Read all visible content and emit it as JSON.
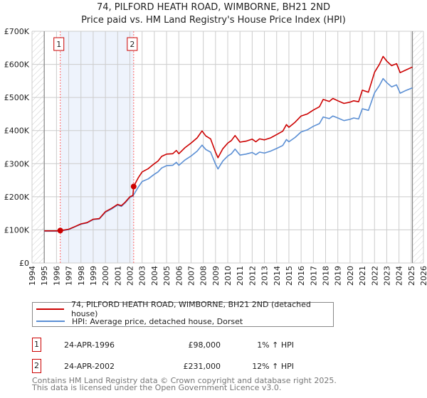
{
  "chart_data": {
    "type": "line",
    "title": "74, PILFORD HEATH ROAD, WIMBORNE, BH21 2ND",
    "subtitle": "Price paid vs. HM Land Registry's House Price Index (HPI)",
    "xlim": [
      1994,
      2026
    ],
    "ylim": [
      0,
      700000
    ],
    "x_ticks": [
      "1994",
      "1995",
      "1996",
      "1997",
      "1998",
      "1999",
      "2000",
      "2001",
      "2002",
      "2003",
      "2004",
      "2005",
      "2006",
      "2007",
      "2008",
      "2009",
      "2010",
      "2011",
      "2012",
      "2013",
      "2014",
      "2015",
      "2016",
      "2017",
      "2018",
      "2019",
      "2020",
      "2021",
      "2022",
      "2023",
      "2024",
      "2025",
      "2026"
    ],
    "y_ticks": [
      {
        "v": 0,
        "label": "£0"
      },
      {
        "v": 100000,
        "label": "£100K"
      },
      {
        "v": 200000,
        "label": "£200K"
      },
      {
        "v": 300000,
        "label": "£300K"
      },
      {
        "v": 400000,
        "label": "£400K"
      },
      {
        "v": 500000,
        "label": "£500K"
      },
      {
        "v": 600000,
        "label": "£600K"
      },
      {
        "v": 700000,
        "label": "£700K"
      }
    ],
    "grid": true,
    "data_range": [
      1995,
      2025.1
    ],
    "shaded_range": [
      1996.31,
      2002.31
    ],
    "colors": {
      "price": "#cc0000",
      "hpi": "#5b8fd4",
      "marker_line": "#ff6666",
      "shade": "#eef3fc"
    },
    "series": [
      {
        "name": "74, PILFORD HEATH ROAD, WIMBORNE, BH21 2ND (detached house)",
        "unit": "£K",
        "points": [
          [
            1995.0,
            97
          ],
          [
            1995.5,
            97
          ],
          [
            1996.0,
            97
          ],
          [
            1996.31,
            98
          ],
          [
            1996.7,
            100
          ],
          [
            1997.0,
            102
          ],
          [
            1997.5,
            110
          ],
          [
            1998.0,
            118
          ],
          [
            1998.5,
            122
          ],
          [
            1999.0,
            132
          ],
          [
            1999.5,
            134
          ],
          [
            2000.0,
            155
          ],
          [
            2000.5,
            165
          ],
          [
            2001.0,
            177
          ],
          [
            2001.3,
            173
          ],
          [
            2001.6,
            183
          ],
          [
            2002.0,
            200
          ],
          [
            2002.25,
            204
          ],
          [
            2002.31,
            231
          ],
          [
            2002.7,
            258
          ],
          [
            2003.0,
            275
          ],
          [
            2003.5,
            285
          ],
          [
            2004.0,
            300
          ],
          [
            2004.3,
            308
          ],
          [
            2004.6,
            322
          ],
          [
            2005.0,
            329
          ],
          [
            2005.5,
            330
          ],
          [
            2005.8,
            340
          ],
          [
            2006.0,
            330
          ],
          [
            2006.5,
            348
          ],
          [
            2007.0,
            362
          ],
          [
            2007.5,
            378
          ],
          [
            2007.9,
            399
          ],
          [
            2008.2,
            384
          ],
          [
            2008.6,
            375
          ],
          [
            2009.0,
            335
          ],
          [
            2009.2,
            318
          ],
          [
            2009.6,
            345
          ],
          [
            2010.0,
            362
          ],
          [
            2010.3,
            370
          ],
          [
            2010.6,
            385
          ],
          [
            2011.0,
            365
          ],
          [
            2011.5,
            368
          ],
          [
            2012.0,
            374
          ],
          [
            2012.3,
            366
          ],
          [
            2012.6,
            375
          ],
          [
            2013.0,
            372
          ],
          [
            2013.5,
            378
          ],
          [
            2014.0,
            388
          ],
          [
            2014.5,
            398
          ],
          [
            2014.8,
            418
          ],
          [
            2015.0,
            410
          ],
          [
            2015.5,
            425
          ],
          [
            2016.0,
            444
          ],
          [
            2016.5,
            450
          ],
          [
            2017.0,
            462
          ],
          [
            2017.5,
            472
          ],
          [
            2017.8,
            494
          ],
          [
            2018.3,
            488
          ],
          [
            2018.6,
            497
          ],
          [
            2019.0,
            490
          ],
          [
            2019.5,
            482
          ],
          [
            2020.0,
            486
          ],
          [
            2020.3,
            490
          ],
          [
            2020.7,
            487
          ],
          [
            2021.0,
            522
          ],
          [
            2021.5,
            516
          ],
          [
            2022.0,
            576
          ],
          [
            2022.4,
            600
          ],
          [
            2022.7,
            624
          ],
          [
            2023.0,
            610
          ],
          [
            2023.4,
            596
          ],
          [
            2023.8,
            602
          ],
          [
            2024.1,
            575
          ],
          [
            2024.5,
            582
          ],
          [
            2025.1,
            592
          ]
        ]
      },
      {
        "name": "HPI: Average price, detached house, Dorset",
        "unit": "£K",
        "points": [
          [
            1995.0,
            96
          ],
          [
            1995.5,
            96
          ],
          [
            1996.0,
            96
          ],
          [
            1996.31,
            97
          ],
          [
            1996.7,
            99
          ],
          [
            1997.0,
            101
          ],
          [
            1997.5,
            109
          ],
          [
            1998.0,
            117
          ],
          [
            1998.5,
            121
          ],
          [
            1999.0,
            131
          ],
          [
            1999.5,
            133
          ],
          [
            2000.0,
            153
          ],
          [
            2000.5,
            163
          ],
          [
            2001.0,
            175
          ],
          [
            2001.3,
            171
          ],
          [
            2001.6,
            181
          ],
          [
            2002.0,
            198
          ],
          [
            2002.25,
            202
          ],
          [
            2002.31,
            206
          ],
          [
            2002.7,
            230
          ],
          [
            2003.0,
            246
          ],
          [
            2003.5,
            254
          ],
          [
            2004.0,
            268
          ],
          [
            2004.3,
            275
          ],
          [
            2004.6,
            287
          ],
          [
            2005.0,
            294
          ],
          [
            2005.5,
            295
          ],
          [
            2005.8,
            304
          ],
          [
            2006.0,
            295
          ],
          [
            2006.5,
            311
          ],
          [
            2007.0,
            323
          ],
          [
            2007.5,
            338
          ],
          [
            2007.9,
            356
          ],
          [
            2008.2,
            343
          ],
          [
            2008.6,
            335
          ],
          [
            2009.0,
            299
          ],
          [
            2009.2,
            284
          ],
          [
            2009.6,
            308
          ],
          [
            2010.0,
            323
          ],
          [
            2010.3,
            330
          ],
          [
            2010.6,
            344
          ],
          [
            2011.0,
            326
          ],
          [
            2011.5,
            329
          ],
          [
            2012.0,
            334
          ],
          [
            2012.3,
            327
          ],
          [
            2012.6,
            335
          ],
          [
            2013.0,
            332
          ],
          [
            2013.5,
            338
          ],
          [
            2014.0,
            346
          ],
          [
            2014.5,
            355
          ],
          [
            2014.8,
            373
          ],
          [
            2015.0,
            366
          ],
          [
            2015.5,
            379
          ],
          [
            2016.0,
            396
          ],
          [
            2016.5,
            402
          ],
          [
            2017.0,
            413
          ],
          [
            2017.5,
            421
          ],
          [
            2017.8,
            441
          ],
          [
            2018.3,
            436
          ],
          [
            2018.6,
            444
          ],
          [
            2019.0,
            438
          ],
          [
            2019.5,
            430
          ],
          [
            2020.0,
            434
          ],
          [
            2020.3,
            438
          ],
          [
            2020.7,
            435
          ],
          [
            2021.0,
            466
          ],
          [
            2021.5,
            461
          ],
          [
            2022.0,
            514
          ],
          [
            2022.4,
            536
          ],
          [
            2022.7,
            557
          ],
          [
            2023.0,
            545
          ],
          [
            2023.4,
            532
          ],
          [
            2023.8,
            538
          ],
          [
            2024.1,
            513
          ],
          [
            2024.5,
            520
          ],
          [
            2025.1,
            529
          ]
        ]
      }
    ],
    "sales": [
      {
        "id": "1",
        "x": 1996.31,
        "value": 98,
        "date": "24-APR-1996",
        "price": "£98,000",
        "hpi": "1% ↑ HPI"
      },
      {
        "id": "2",
        "x": 2002.31,
        "value": 231,
        "date": "24-APR-2002",
        "price": "£231,000",
        "hpi": "12% ↑ HPI"
      }
    ]
  },
  "footer": {
    "line1": "Contains HM Land Registry data © Crown copyright and database right 2025.",
    "line2": "This data is licensed under the Open Government Licence v3.0."
  }
}
